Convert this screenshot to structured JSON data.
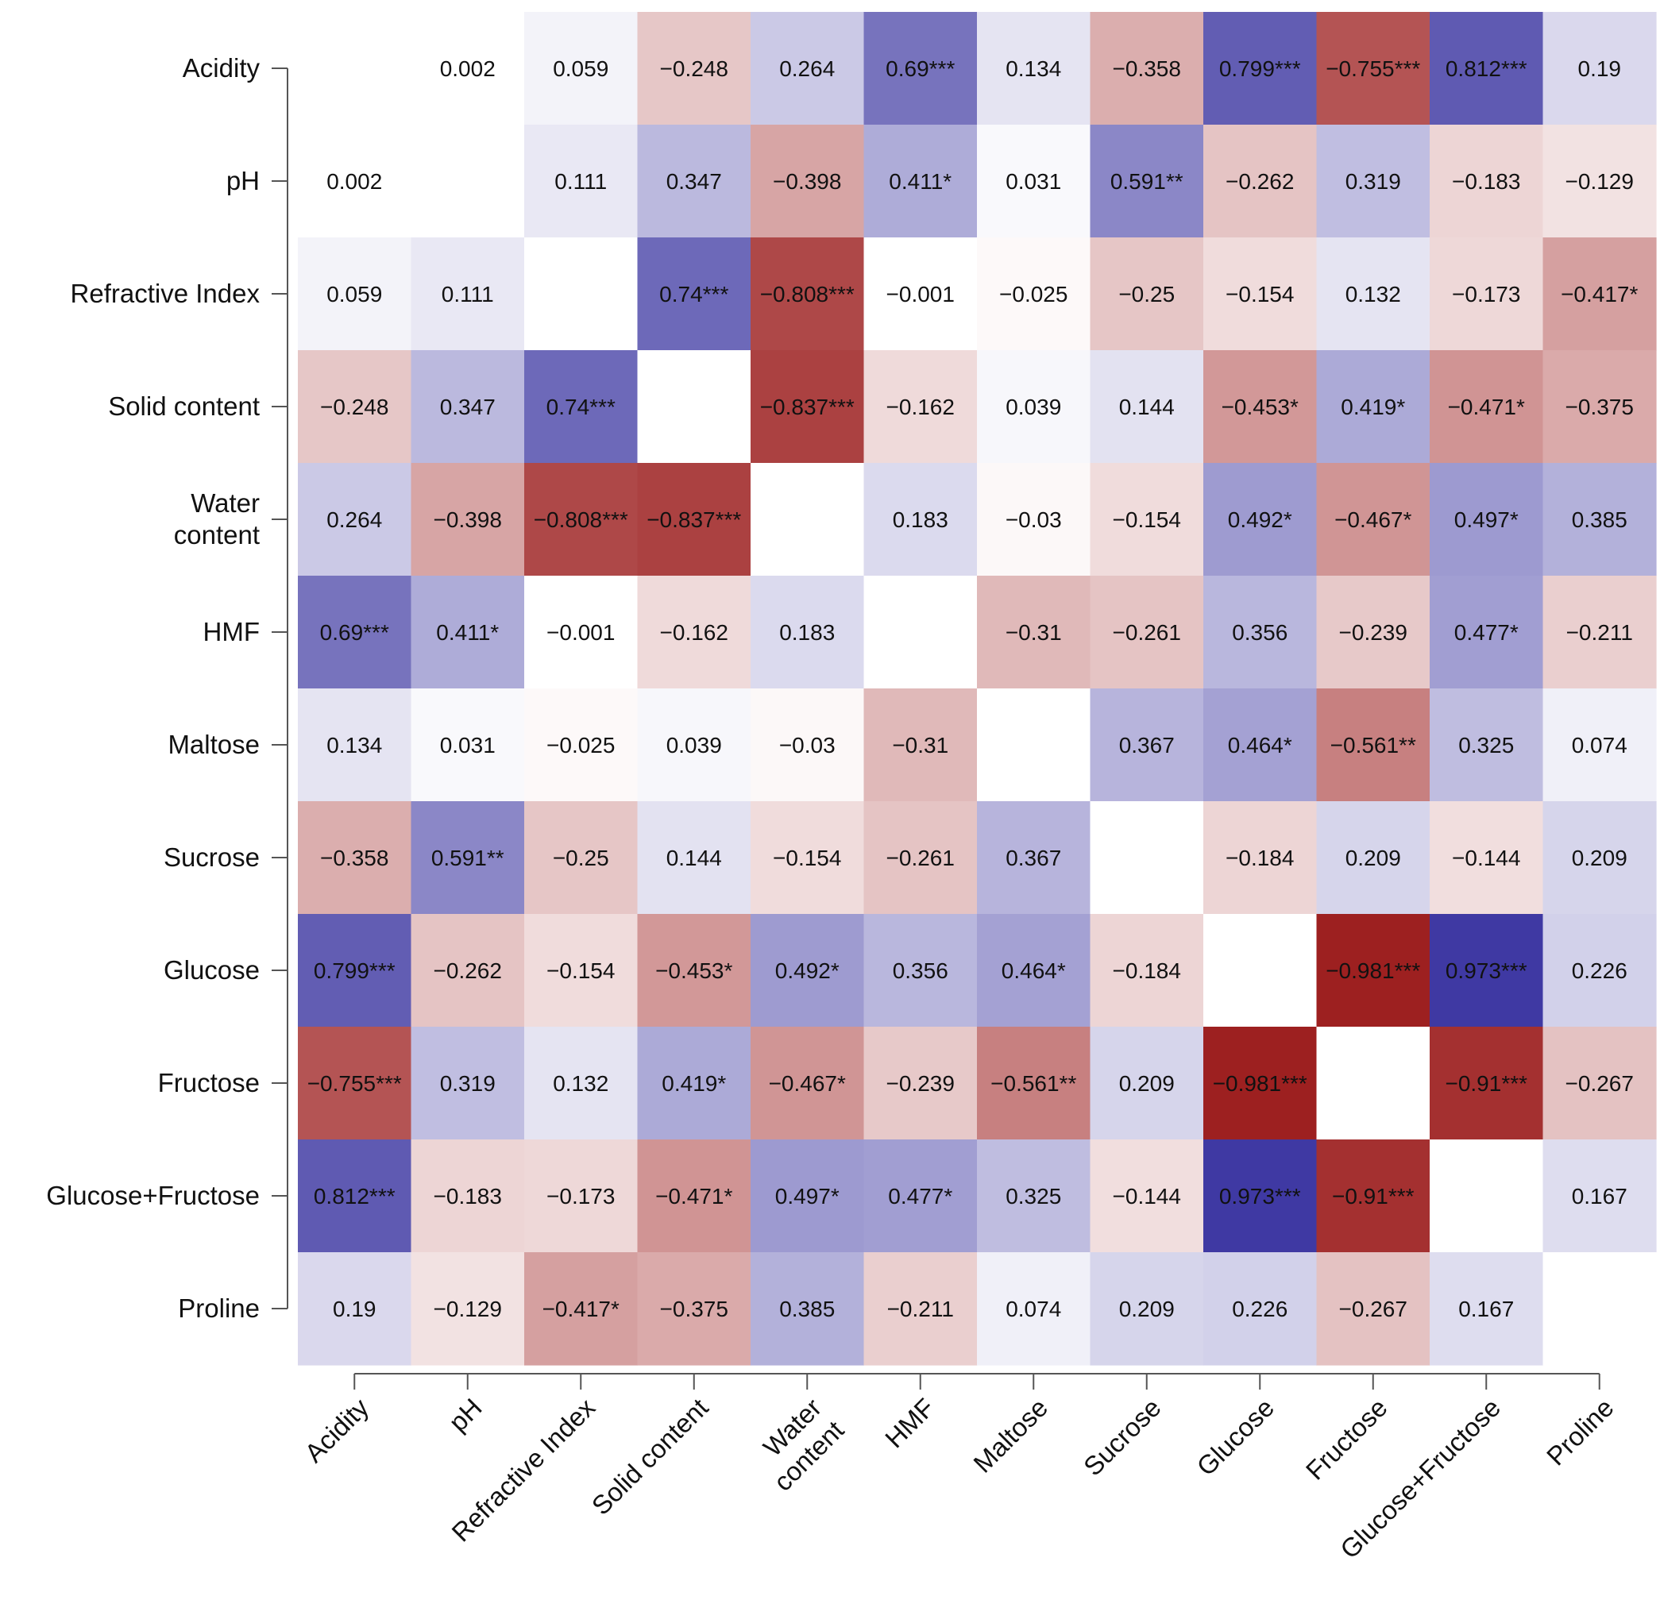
{
  "chart_data": {
    "type": "heatmap",
    "title": "",
    "xlabel": "",
    "ylabel": "",
    "color_scale": {
      "negative": "#9b1c1c",
      "zero": "#ffffff",
      "positive": "#3a34a0"
    },
    "row_labels": [
      [
        "Acidity"
      ],
      [
        "pH"
      ],
      [
        "Refractive Index"
      ],
      [
        "Solid content"
      ],
      [
        "Water",
        "content"
      ],
      [
        "HMF"
      ],
      [
        "Maltose"
      ],
      [
        "Sucrose"
      ],
      [
        "Glucose"
      ],
      [
        "Fructose"
      ],
      [
        "Glucose+Fructose"
      ],
      [
        "Proline"
      ]
    ],
    "col_labels": [
      [
        "Acidity"
      ],
      [
        "pH"
      ],
      [
        "Refractive Index"
      ],
      [
        "Solid content"
      ],
      [
        "Water",
        "content"
      ],
      [
        "HMF"
      ],
      [
        "Maltose"
      ],
      [
        "Sucrose"
      ],
      [
        "Glucose"
      ],
      [
        "Fructose"
      ],
      [
        "Glucose+Fructose"
      ],
      [
        "Proline"
      ]
    ],
    "values": [
      [
        null,
        0.002,
        0.059,
        -0.248,
        0.264,
        0.69,
        0.134,
        -0.358,
        0.799,
        -0.755,
        0.812,
        0.19
      ],
      [
        0.002,
        null,
        0.111,
        0.347,
        -0.398,
        0.411,
        0.031,
        0.591,
        -0.262,
        0.319,
        -0.183,
        -0.129
      ],
      [
        0.059,
        0.111,
        null,
        0.74,
        -0.808,
        -0.001,
        -0.025,
        -0.25,
        -0.154,
        0.132,
        -0.173,
        -0.417
      ],
      [
        -0.248,
        0.347,
        0.74,
        null,
        -0.837,
        -0.162,
        0.039,
        0.144,
        -0.453,
        0.419,
        -0.471,
        -0.375
      ],
      [
        0.264,
        -0.398,
        -0.808,
        -0.837,
        null,
        0.183,
        -0.03,
        -0.154,
        0.492,
        -0.467,
        0.497,
        0.385
      ],
      [
        0.69,
        0.411,
        -0.001,
        -0.162,
        0.183,
        null,
        -0.31,
        -0.261,
        0.356,
        -0.239,
        0.477,
        -0.211
      ],
      [
        0.134,
        0.031,
        -0.025,
        0.039,
        -0.03,
        -0.31,
        null,
        0.367,
        0.464,
        -0.561,
        0.325,
        0.074
      ],
      [
        -0.358,
        0.591,
        -0.25,
        0.144,
        -0.154,
        -0.261,
        0.367,
        null,
        -0.184,
        0.209,
        -0.144,
        0.209
      ],
      [
        0.799,
        -0.262,
        -0.154,
        -0.453,
        0.492,
        0.356,
        0.464,
        -0.184,
        null,
        -0.981,
        0.973,
        0.226
      ],
      [
        -0.755,
        0.319,
        0.132,
        0.419,
        -0.467,
        -0.239,
        -0.561,
        0.209,
        -0.981,
        null,
        -0.91,
        -0.267
      ],
      [
        0.812,
        -0.183,
        -0.173,
        -0.471,
        0.497,
        0.477,
        0.325,
        -0.144,
        0.973,
        -0.91,
        null,
        0.167
      ],
      [
        0.19,
        -0.129,
        -0.417,
        -0.375,
        0.385,
        -0.211,
        0.074,
        0.209,
        0.226,
        -0.267,
        0.167,
        null
      ]
    ],
    "labels": [
      [
        "",
        "0.002",
        "0.059",
        "−0.248",
        "0.264",
        "0.69***",
        "0.134",
        "−0.358",
        "0.799***",
        "−0.755***",
        "0.812***",
        "0.19"
      ],
      [
        "0.002",
        "",
        "0.111",
        "0.347",
        "−0.398",
        "0.411*",
        "0.031",
        "0.591**",
        "−0.262",
        "0.319",
        "−0.183",
        "−0.129"
      ],
      [
        "0.059",
        "0.111",
        "",
        "0.74***",
        "−0.808***",
        "−0.001",
        "−0.025",
        "−0.25",
        "−0.154",
        "0.132",
        "−0.173",
        "−0.417*"
      ],
      [
        "−0.248",
        "0.347",
        "0.74***",
        "",
        "−0.837***",
        "−0.162",
        "0.039",
        "0.144",
        "−0.453*",
        "0.419*",
        "−0.471*",
        "−0.375"
      ],
      [
        "0.264",
        "−0.398",
        "−0.808***",
        "−0.837***",
        "",
        "0.183",
        "−0.03",
        "−0.154",
        "0.492*",
        "−0.467*",
        "0.497*",
        "0.385"
      ],
      [
        "0.69***",
        "0.411*",
        "−0.001",
        "−0.162",
        "0.183",
        "",
        "−0.31",
        "−0.261",
        "0.356",
        "−0.239",
        "0.477*",
        "−0.211"
      ],
      [
        "0.134",
        "0.031",
        "−0.025",
        "0.039",
        "−0.03",
        "−0.31",
        "",
        "0.367",
        "0.464*",
        "−0.561**",
        "0.325",
        "0.074"
      ],
      [
        "−0.358",
        "0.591**",
        "−0.25",
        "0.144",
        "−0.154",
        "−0.261",
        "0.367",
        "",
        "−0.184",
        "0.209",
        "−0.144",
        "0.209"
      ],
      [
        "0.799***",
        "−0.262",
        "−0.154",
        "−0.453*",
        "0.492*",
        "0.356",
        "0.464*",
        "−0.184",
        "",
        "−0.981***",
        "0.973***",
        "0.226"
      ],
      [
        "−0.755***",
        "0.319",
        "0.132",
        "0.419*",
        "−0.467*",
        "−0.239",
        "−0.561**",
        "0.209",
        "−0.981***",
        "",
        "−0.91***",
        "−0.267"
      ],
      [
        "0.812***",
        "−0.183",
        "−0.173",
        "−0.471*",
        "0.497*",
        "0.477*",
        "0.325",
        "−0.144",
        "0.973***",
        "−0.91***",
        "",
        "0.167"
      ],
      [
        "0.19",
        "−0.129",
        "−0.417*",
        "−0.375",
        "0.385",
        "−0.211",
        "0.074",
        "0.209",
        "0.226",
        "−0.267",
        "0.167",
        ""
      ]
    ]
  }
}
